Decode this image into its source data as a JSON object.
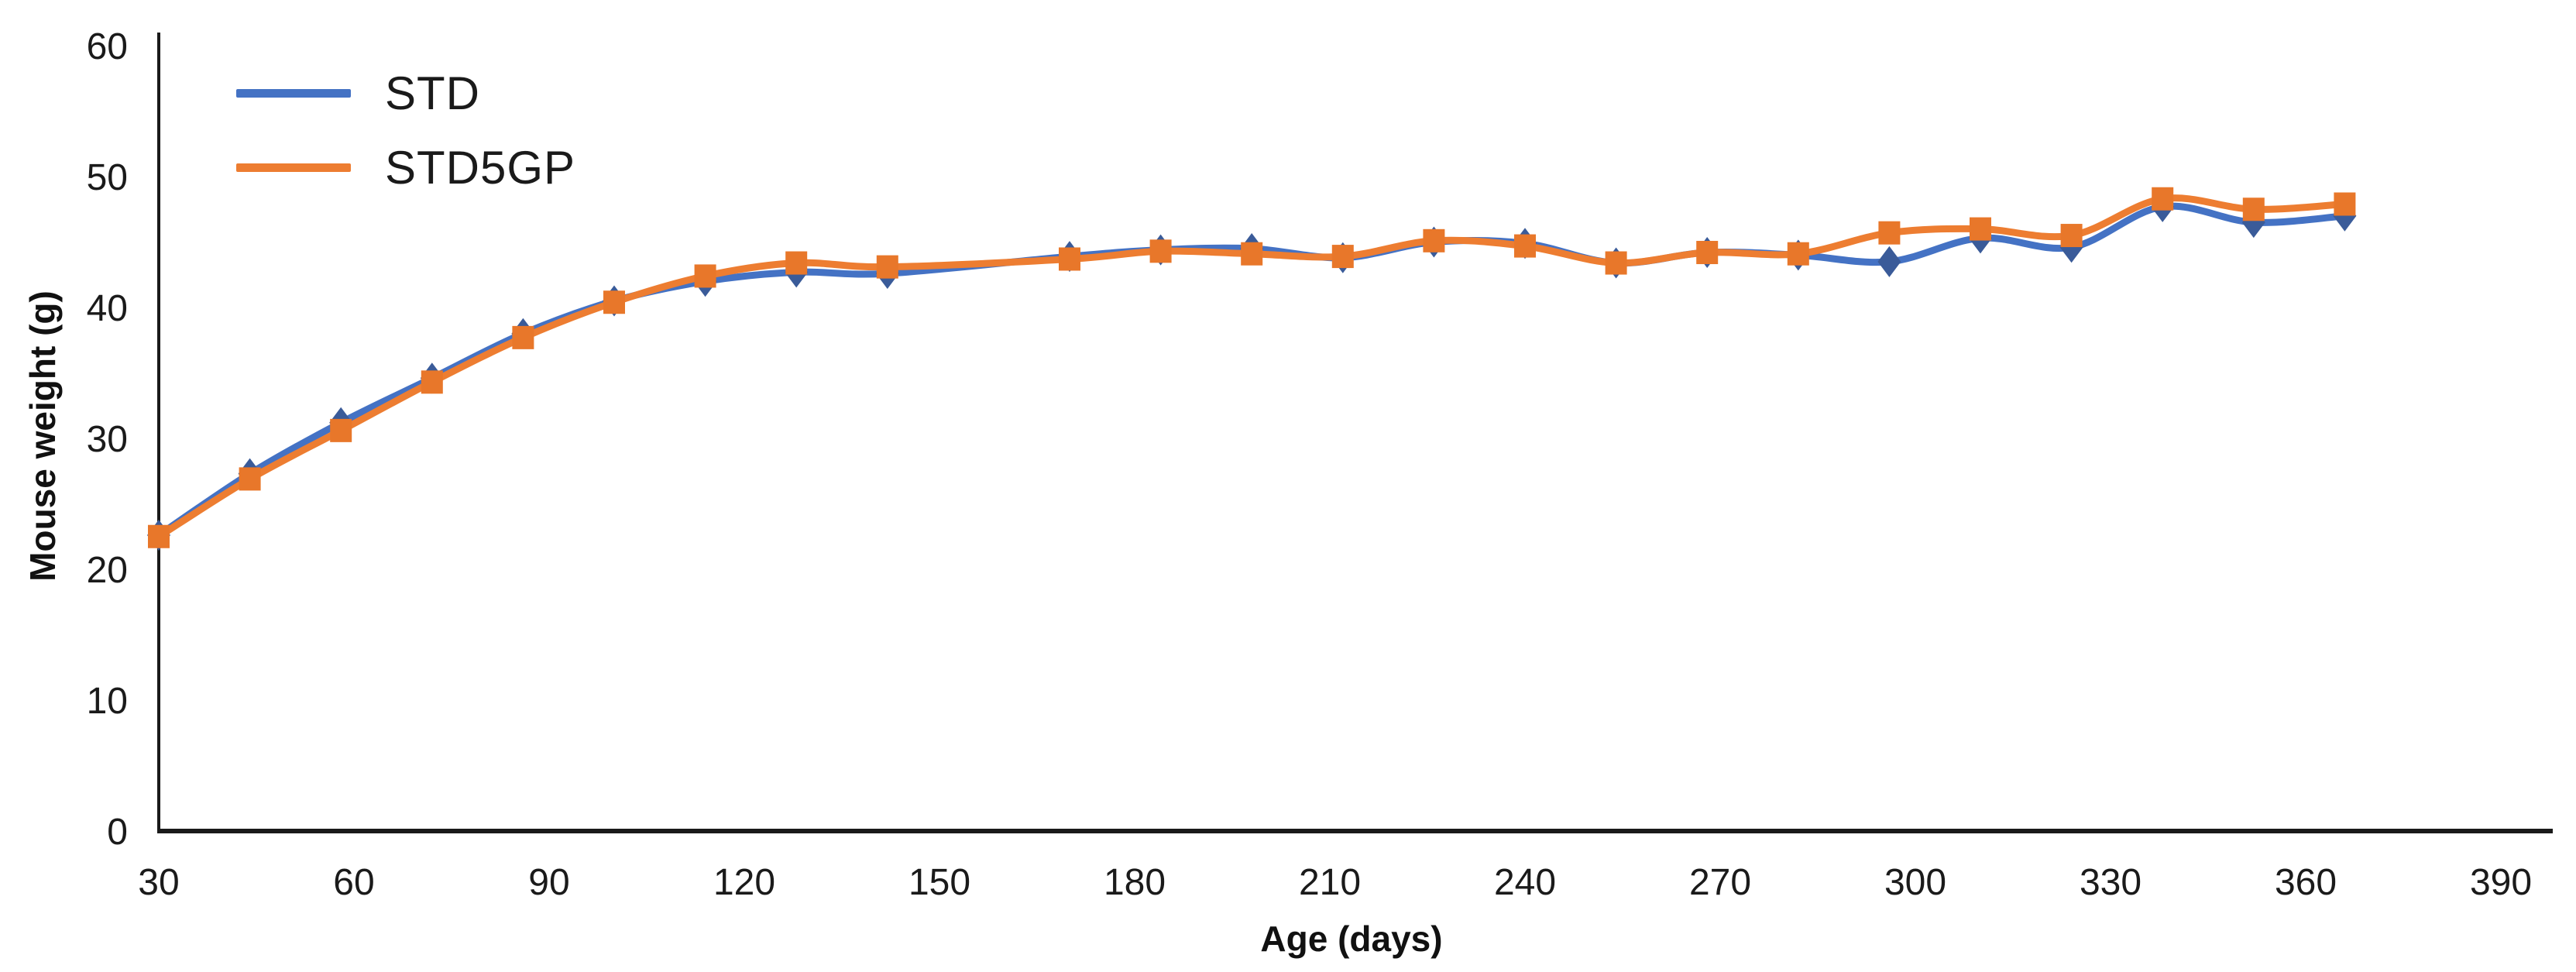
{
  "chart_data": {
    "type": "line",
    "title": "",
    "xlabel": "Age (days)",
    "ylabel": "Mouse weight (g)",
    "xlim": [
      30,
      390
    ],
    "ylim": [
      0,
      60
    ],
    "x_ticks": [
      30,
      60,
      90,
      120,
      150,
      180,
      210,
      240,
      270,
      300,
      330,
      360,
      390
    ],
    "y_ticks": [
      0,
      10,
      20,
      30,
      40,
      50,
      60
    ],
    "grid": false,
    "legend_position": "top-left",
    "axis_color": "#1a1a1a",
    "x": [
      30,
      44,
      58,
      72,
      86,
      100,
      114,
      128,
      142,
      170,
      184,
      198,
      212,
      226,
      240,
      254,
      268,
      282,
      296,
      310,
      324,
      338,
      352,
      366
    ],
    "series": [
      {
        "name": "STD",
        "color": "#4472C4",
        "marker_color": "#3A5B99",
        "marker": "diamond",
        "values": [
          22.6,
          27.3,
          31.2,
          34.6,
          38.0,
          40.5,
          42.0,
          42.7,
          42.6,
          43.9,
          44.4,
          44.5,
          43.8,
          45.0,
          44.9,
          43.4,
          44.2,
          44.0,
          43.5,
          45.3,
          44.6,
          47.7,
          46.5,
          47.0
        ]
      },
      {
        "name": "STD5GP",
        "color": "#ED7D31",
        "marker_color": "#E8772A",
        "marker": "square",
        "values": [
          22.5,
          26.9,
          30.6,
          34.3,
          37.7,
          40.4,
          42.4,
          43.4,
          43.1,
          43.7,
          44.3,
          44.1,
          43.9,
          45.1,
          44.7,
          43.4,
          44.2,
          44.1,
          45.7,
          46.0,
          45.5,
          48.3,
          47.5,
          47.9
        ]
      }
    ]
  }
}
